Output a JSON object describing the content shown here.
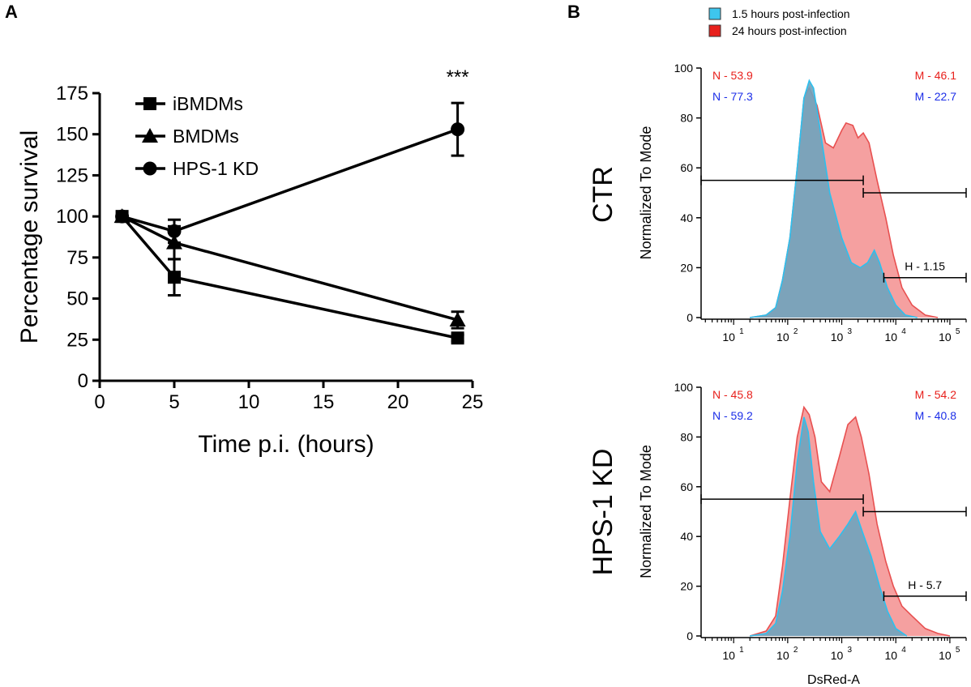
{
  "chart_data": [
    {
      "panel": "A",
      "type": "line",
      "xlabel": "Time p.i. (hours)",
      "ylabel": "Percentage survival",
      "xlim": [
        0,
        25
      ],
      "ylim": [
        0,
        175
      ],
      "xticks": [
        0,
        5,
        10,
        15,
        20,
        25
      ],
      "yticks": [
        0,
        25,
        50,
        75,
        100,
        125,
        150,
        175
      ],
      "legend_position": "top-left",
      "annotation": "***",
      "annotation_x": 24,
      "series": [
        {
          "name": "iBMDMs",
          "marker": "square",
          "points": [
            {
              "x": 1.5,
              "y": 100,
              "err": 0
            },
            {
              "x": 5,
              "y": 63,
              "err": 11
            },
            {
              "x": 24,
              "y": 26,
              "err": 2
            }
          ]
        },
        {
          "name": "BMDMs",
          "marker": "triangle",
          "points": [
            {
              "x": 1.5,
              "y": 100,
              "err": 0
            },
            {
              "x": 5,
              "y": 84,
              "err": 10
            },
            {
              "x": 24,
              "y": 37,
              "err": 5
            }
          ]
        },
        {
          "name": "HPS-1 KD",
          "marker": "circle",
          "points": [
            {
              "x": 1.5,
              "y": 100,
              "err": 0
            },
            {
              "x": 5,
              "y": 91,
              "err": 7
            },
            {
              "x": 24,
              "y": 153,
              "err": 16
            }
          ]
        }
      ]
    },
    {
      "panel": "B",
      "type": "area",
      "xlabel": "DsRed-A",
      "ylabel": "Normalized To Mode",
      "xscale": "log",
      "xtick_labels": [
        "10",
        "10",
        "10",
        "10",
        "10"
      ],
      "xtick_exponents": [
        "1",
        "2",
        "3",
        "4",
        "5"
      ],
      "xtick_values": [
        10,
        100,
        1000,
        10000,
        100000
      ],
      "yticks": [
        0,
        20,
        40,
        60,
        80,
        100
      ],
      "ylim": [
        0,
        100
      ],
      "legend": [
        {
          "label": "1.5 hours post-infection",
          "color": "#3ec6ee"
        },
        {
          "label": "24 hours post-infection",
          "color": "#e8201c"
        }
      ],
      "series_colors": {
        "early_fill": "#6fa3bd",
        "early_line": "#2cc0ef",
        "late_fill": "#f5a0a0",
        "late_line": "#e85050"
      },
      "panels": [
        {
          "row_label": "CTR",
          "stats": {
            "N_red": "N - 53.9",
            "N_blue": "N - 77.3",
            "M_red": "M - 46.1",
            "M_blue": "M - 22.7",
            "H": "H - 1.15"
          },
          "gates": {
            "N": [
              2.5,
              2500
            ],
            "M": [
              2500,
              200000
            ],
            "H": [
              6000,
              200000
            ]
          },
          "early": [
            [
              20,
              0
            ],
            [
              40,
              1
            ],
            [
              60,
              4
            ],
            [
              80,
              15
            ],
            [
              110,
              32
            ],
            [
              150,
              60
            ],
            [
              200,
              88
            ],
            [
              250,
              95
            ],
            [
              300,
              92
            ],
            [
              400,
              75
            ],
            [
              600,
              50
            ],
            [
              1000,
              32
            ],
            [
              1500,
              22
            ],
            [
              2200,
              20
            ],
            [
              3000,
              22
            ],
            [
              4000,
              27
            ],
            [
              5000,
              22
            ],
            [
              7000,
              12
            ],
            [
              10000,
              5
            ],
            [
              15000,
              1
            ],
            [
              25000,
              0
            ]
          ],
          "late": [
            [
              20,
              0
            ],
            [
              40,
              1
            ],
            [
              60,
              4
            ],
            [
              80,
              15
            ],
            [
              110,
              32
            ],
            [
              150,
              60
            ],
            [
              200,
              88
            ],
            [
              250,
              92
            ],
            [
              350,
              85
            ],
            [
              500,
              70
            ],
            [
              700,
              68
            ],
            [
              1000,
              75
            ],
            [
              1200,
              78
            ],
            [
              1600,
              77
            ],
            [
              2000,
              72
            ],
            [
              2500,
              74
            ],
            [
              3200,
              70
            ],
            [
              4500,
              55
            ],
            [
              6500,
              40
            ],
            [
              9000,
              25
            ],
            [
              13000,
              12
            ],
            [
              20000,
              5
            ],
            [
              35000,
              1
            ],
            [
              60000,
              0
            ]
          ]
        },
        {
          "row_label": "HPS-1 KD",
          "stats": {
            "N_red": "N - 45.8",
            "N_blue": "N - 59.2",
            "M_red": "M - 54.2",
            "M_blue": "M - 40.8",
            "H": "H - 5.7"
          },
          "gates": {
            "N": [
              2.5,
              2500
            ],
            "M": [
              2500,
              200000
            ],
            "H": [
              6000,
              200000
            ]
          },
          "early": [
            [
              20,
              0
            ],
            [
              40,
              1
            ],
            [
              60,
              5
            ],
            [
              80,
              18
            ],
            [
              110,
              40
            ],
            [
              150,
              70
            ],
            [
              200,
              88
            ],
            [
              240,
              82
            ],
            [
              300,
              62
            ],
            [
              400,
              42
            ],
            [
              600,
              35
            ],
            [
              900,
              40
            ],
            [
              1300,
              45
            ],
            [
              1800,
              50
            ],
            [
              2400,
              42
            ],
            [
              3500,
              32
            ],
            [
              5000,
              20
            ],
            [
              7000,
              10
            ],
            [
              10000,
              3
            ],
            [
              16000,
              0
            ]
          ],
          "late": [
            [
              20,
              0
            ],
            [
              40,
              2
            ],
            [
              60,
              8
            ],
            [
              80,
              28
            ],
            [
              110,
              55
            ],
            [
              150,
              80
            ],
            [
              200,
              92
            ],
            [
              250,
              89
            ],
            [
              320,
              80
            ],
            [
              420,
              62
            ],
            [
              600,
              58
            ],
            [
              900,
              72
            ],
            [
              1300,
              85
            ],
            [
              1800,
              88
            ],
            [
              2300,
              80
            ],
            [
              3200,
              65
            ],
            [
              4500,
              45
            ],
            [
              6500,
              30
            ],
            [
              9000,
              20
            ],
            [
              13000,
              12
            ],
            [
              20000,
              8
            ],
            [
              35000,
              3
            ],
            [
              60000,
              1
            ],
            [
              100000,
              0
            ]
          ]
        }
      ]
    }
  ],
  "panel_labels": {
    "a": "A",
    "b": "B"
  }
}
